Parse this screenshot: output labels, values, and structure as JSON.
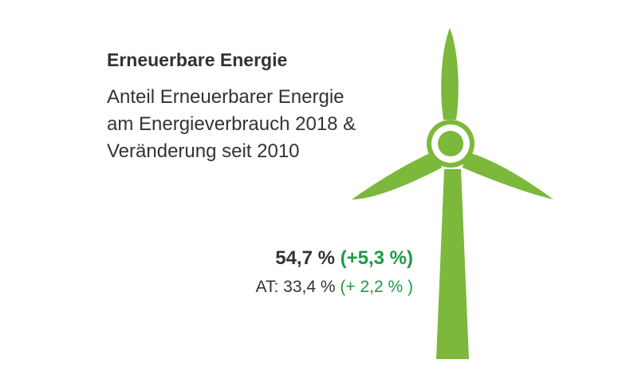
{
  "title": "Erneuerbare Energie",
  "subtitle_lines": [
    "Anteil Erneuerbarer Energie",
    "am Energieverbrauch 2018 &",
    "Veränderung seit 2010"
  ],
  "main_value": {
    "share": "54,7 %",
    "change": "(+5,3 %)"
  },
  "comparison": {
    "label_value": "AT: 33,4 %",
    "change": "(+ 2,2 % )"
  },
  "icon": "wind-turbine-icon",
  "colors": {
    "turbine": "#7cb83b",
    "change_text": "#1e9a45",
    "text": "#333333"
  }
}
